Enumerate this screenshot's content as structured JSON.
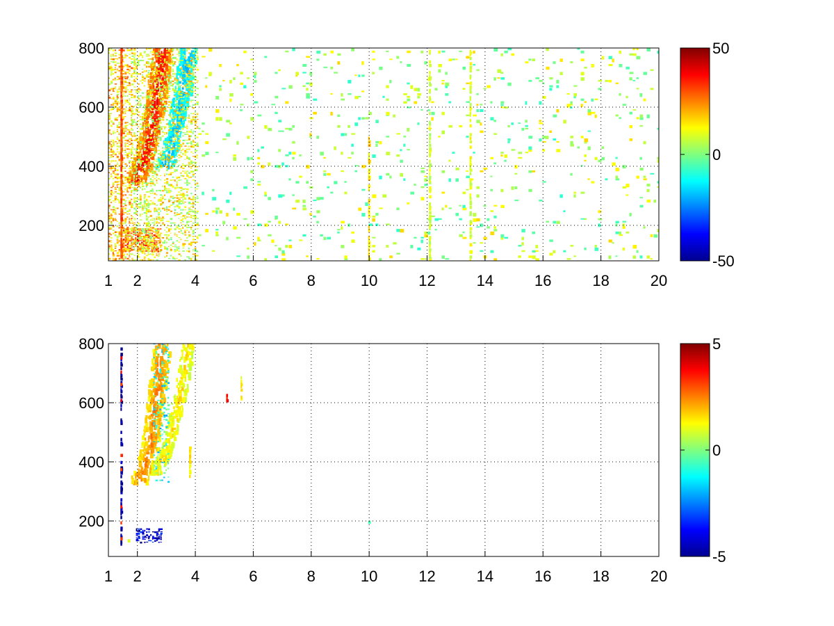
{
  "chart_data": [
    {
      "type": "heatmap",
      "title": "",
      "xlabel": "",
      "ylabel": "",
      "xlim": [
        1,
        20
      ],
      "ylim": [
        80,
        800
      ],
      "x_ticks": [
        {
          "v": 1,
          "label": "1"
        },
        {
          "v": 2,
          "label": "2"
        },
        {
          "v": 4,
          "label": "4"
        },
        {
          "v": 6,
          "label": "6"
        },
        {
          "v": 8,
          "label": "8"
        },
        {
          "v": 10,
          "label": "10"
        },
        {
          "v": 12,
          "label": "12"
        },
        {
          "v": 14,
          "label": "14"
        },
        {
          "v": 16,
          "label": "16"
        },
        {
          "v": 18,
          "label": "18"
        },
        {
          "v": 20,
          "label": "20"
        }
      ],
      "y_ticks": [
        {
          "v": 200,
          "label": "200"
        },
        {
          "v": 400,
          "label": "400"
        },
        {
          "v": 600,
          "label": "600"
        },
        {
          "v": 800,
          "label": "800"
        }
      ],
      "grid": "dotted",
      "colormap": "jet",
      "clim": [
        -50,
        50
      ],
      "colorbar_ticks": [
        {
          "v": 50,
          "label": "50"
        },
        {
          "v": 0,
          "label": "0"
        },
        {
          "v": -50,
          "label": "-50"
        }
      ],
      "features": [
        {
          "kind": "curve",
          "pts": [
            [
              1.9,
              350
            ],
            [
              2.1,
              400
            ],
            [
              2.3,
              460
            ],
            [
              2.45,
              530
            ],
            [
              2.6,
              620
            ],
            [
              2.75,
              720
            ],
            [
              2.85,
              800
            ]
          ],
          "value": 38,
          "spread": 0.35,
          "density": 0.95
        },
        {
          "kind": "curve",
          "pts": [
            [
              2.9,
              400
            ],
            [
              3.1,
              460
            ],
            [
              3.3,
              540
            ],
            [
              3.5,
              640
            ],
            [
              3.65,
              740
            ],
            [
              3.75,
              800
            ]
          ],
          "value": -18,
          "spread": 0.3,
          "density": 0.75
        },
        {
          "kind": "band",
          "x": [
            1.5,
            2.8
          ],
          "y": [
            110,
            190
          ],
          "value": 25,
          "density": 0.8
        },
        {
          "kind": "band",
          "x": [
            1.0,
            1.8
          ],
          "y": [
            80,
            800
          ],
          "value": 16,
          "density": 0.4
        },
        {
          "kind": "vline",
          "x": 1.45,
          "y": [
            80,
            800
          ],
          "value": 30,
          "density": 0.9
        },
        {
          "kind": "band",
          "x": [
            1.8,
            4.1
          ],
          "y": [
            80,
            800
          ],
          "value": 10,
          "density": 0.35
        },
        {
          "kind": "band",
          "x": [
            4.1,
            20
          ],
          "y": [
            80,
            800
          ],
          "value": 4,
          "density": 0.07
        },
        {
          "kind": "vline",
          "x": 10.0,
          "y": [
            80,
            500
          ],
          "value": 15,
          "density": 0.6
        },
        {
          "kind": "vline",
          "x": 12.1,
          "y": [
            80,
            800
          ],
          "value": 8,
          "density": 0.45
        },
        {
          "kind": "vline",
          "x": 13.5,
          "y": [
            80,
            800
          ],
          "value": 10,
          "density": 0.4
        }
      ]
    },
    {
      "type": "heatmap",
      "title": "",
      "xlabel": "",
      "ylabel": "",
      "xlim": [
        1,
        20
      ],
      "ylim": [
        80,
        800
      ],
      "x_ticks": [
        {
          "v": 1,
          "label": "1"
        },
        {
          "v": 2,
          "label": "2"
        },
        {
          "v": 4,
          "label": "4"
        },
        {
          "v": 6,
          "label": "6"
        },
        {
          "v": 8,
          "label": "8"
        },
        {
          "v": 10,
          "label": "10"
        },
        {
          "v": 12,
          "label": "12"
        },
        {
          "v": 14,
          "label": "14"
        },
        {
          "v": 16,
          "label": "16"
        },
        {
          "v": 18,
          "label": "18"
        },
        {
          "v": 20,
          "label": "20"
        }
      ],
      "y_ticks": [
        {
          "v": 200,
          "label": "200"
        },
        {
          "v": 400,
          "label": "400"
        },
        {
          "v": 600,
          "label": "600"
        },
        {
          "v": 800,
          "label": "800"
        }
      ],
      "grid": "dotted",
      "colormap": "jet",
      "clim": [
        -5,
        5
      ],
      "colorbar_ticks": [
        {
          "v": 5,
          "label": "5"
        },
        {
          "v": 0,
          "label": "0"
        },
        {
          "v": -5,
          "label": "-5"
        }
      ],
      "features": [
        {
          "kind": "curve",
          "pts": [
            [
              2.0,
              330
            ],
            [
              2.2,
              380
            ],
            [
              2.4,
              450
            ],
            [
              2.55,
              560
            ],
            [
              2.7,
              680
            ],
            [
              2.8,
              800
            ]
          ],
          "value": 2.5,
          "spread": 0.3,
          "density": 0.7
        },
        {
          "kind": "curve",
          "pts": [
            [
              2.6,
              360
            ],
            [
              3.0,
              450
            ],
            [
              3.3,
              560
            ],
            [
              3.55,
              680
            ],
            [
              3.7,
              800
            ]
          ],
          "value": 1.5,
          "spread": 0.22,
          "density": 0.45
        },
        {
          "kind": "band",
          "x": [
            2.55,
            3.05
          ],
          "y": [
            330,
            800
          ],
          "value": -1,
          "density": 0.22
        },
        {
          "kind": "band",
          "x": [
            1.95,
            2.85
          ],
          "y": [
            125,
            175
          ],
          "value": -4.2,
          "density": 0.5
        },
        {
          "kind": "vline",
          "x": 1.45,
          "y": [
            115,
            790
          ],
          "value": -4.6,
          "density": 0.45
        },
        {
          "kind": "vline",
          "x": 1.45,
          "y": [
            115,
            790
          ],
          "value": 3.5,
          "density": 0.08
        },
        {
          "kind": "vline",
          "x": 3.82,
          "y": [
            350,
            450
          ],
          "value": 1.5,
          "density": 0.7
        },
        {
          "kind": "vline",
          "x": 5.1,
          "y": [
            600,
            630
          ],
          "value": 3.5,
          "density": 0.8
        },
        {
          "kind": "vline",
          "x": 5.6,
          "y": [
            600,
            690
          ],
          "value": 1.2,
          "density": 0.7
        },
        {
          "kind": "vline",
          "x": 1.7,
          "y": [
            120,
            180
          ],
          "value": 0.5,
          "density": 0.3
        },
        {
          "kind": "vline",
          "x": 10.0,
          "y": [
            195,
            210
          ],
          "value": -0.5,
          "density": 0.7
        }
      ]
    }
  ]
}
